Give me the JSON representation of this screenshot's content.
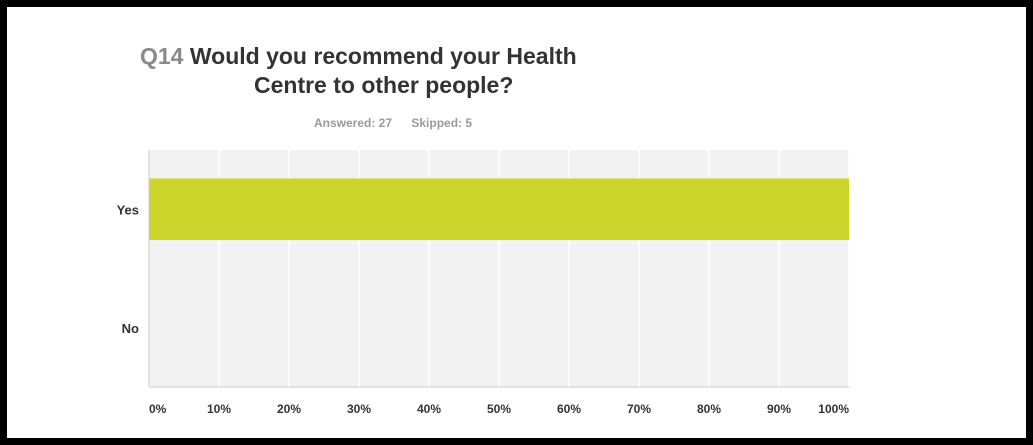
{
  "question": {
    "number": "Q14",
    "title_line1": "Would you recommend your Health",
    "title_line2": "Centre to other people?",
    "answered": "Answered: 27",
    "skipped": "Skipped: 5"
  },
  "colors": {
    "bar": "#cdd52a",
    "plot_background": "#f2f2f2",
    "grid": "#ffffff",
    "axis": "#cccccc",
    "text": "#333333"
  },
  "chart_data": {
    "type": "bar",
    "orientation": "horizontal",
    "categories": [
      "Yes",
      "No"
    ],
    "values": [
      100,
      0
    ],
    "xlim": [
      0,
      100
    ],
    "x_ticks": [
      "0%",
      "10%",
      "20%",
      "30%",
      "40%",
      "50%",
      "60%",
      "70%",
      "80%",
      "90%",
      "100%"
    ],
    "grid": true,
    "legend": "none"
  }
}
